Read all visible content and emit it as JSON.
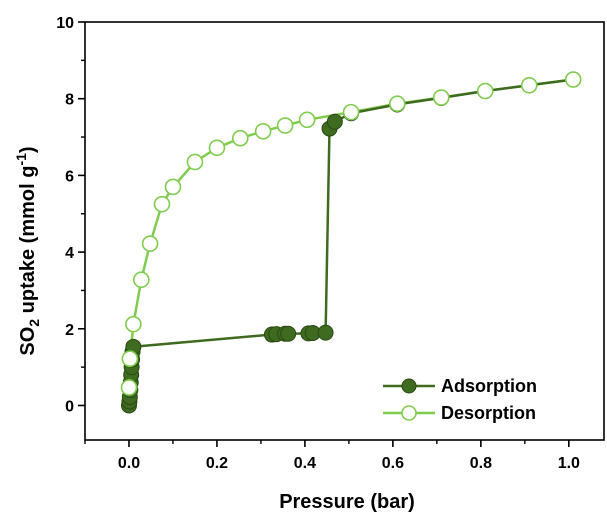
{
  "chart_data": {
    "type": "scatter",
    "title": "",
    "xlabel": "Pressure (bar)",
    "ylabel_parts": {
      "pre": "SO",
      "sub": "2",
      "mid": " uptake (mmol g",
      "sup": "-1",
      "post": ")"
    },
    "xlim": [
      -0.1,
      1.08
    ],
    "ylim": [
      -0.9,
      10
    ],
    "xticks": [
      0.0,
      0.2,
      0.4,
      0.6,
      0.8,
      1.0
    ],
    "xtick_labels": [
      "0.0",
      "0.2",
      "0.4",
      "0.6",
      "0.8",
      "1.0"
    ],
    "yticks": [
      0,
      2,
      4,
      6,
      8,
      10
    ],
    "ytick_labels": [
      "0",
      "2",
      "4",
      "6",
      "8",
      "10"
    ],
    "grid": false,
    "legend_position": "bottom-right",
    "series": [
      {
        "name": "Adsorption",
        "marker": "filled-circle",
        "color": "#3e6b1f",
        "points": [
          [
            0.0,
            0.0
          ],
          [
            0.001,
            0.1
          ],
          [
            0.002,
            0.22
          ],
          [
            0.003,
            0.4
          ],
          [
            0.004,
            0.6
          ],
          [
            0.005,
            0.8
          ],
          [
            0.006,
            1.0
          ],
          [
            0.007,
            1.2
          ],
          [
            0.008,
            1.4
          ],
          [
            0.01,
            1.53
          ],
          [
            0.325,
            1.85
          ],
          [
            0.335,
            1.86
          ],
          [
            0.355,
            1.87
          ],
          [
            0.362,
            1.87
          ],
          [
            0.408,
            1.88
          ],
          [
            0.418,
            1.89
          ],
          [
            0.447,
            1.9
          ],
          [
            0.456,
            7.22
          ],
          [
            0.468,
            7.4
          ],
          [
            0.505,
            7.62
          ],
          [
            0.61,
            7.85
          ],
          [
            0.71,
            8.02
          ],
          [
            0.81,
            8.2
          ],
          [
            0.91,
            8.35
          ],
          [
            1.01,
            8.5
          ]
        ]
      },
      {
        "name": "Desorption",
        "marker": "open-circle",
        "color": "#7fcc4e",
        "points": [
          [
            1.01,
            8.5
          ],
          [
            0.91,
            8.35
          ],
          [
            0.81,
            8.2
          ],
          [
            0.71,
            8.03
          ],
          [
            0.61,
            7.87
          ],
          [
            0.505,
            7.65
          ],
          [
            0.405,
            7.45
          ],
          [
            0.355,
            7.3
          ],
          [
            0.305,
            7.15
          ],
          [
            0.253,
            6.97
          ],
          [
            0.2,
            6.72
          ],
          [
            0.15,
            6.35
          ],
          [
            0.1,
            5.7
          ],
          [
            0.075,
            5.25
          ],
          [
            0.048,
            4.22
          ],
          [
            0.028,
            3.28
          ],
          [
            0.01,
            2.12
          ],
          [
            0.002,
            1.22
          ],
          [
            0.0,
            0.47
          ]
        ]
      }
    ]
  }
}
